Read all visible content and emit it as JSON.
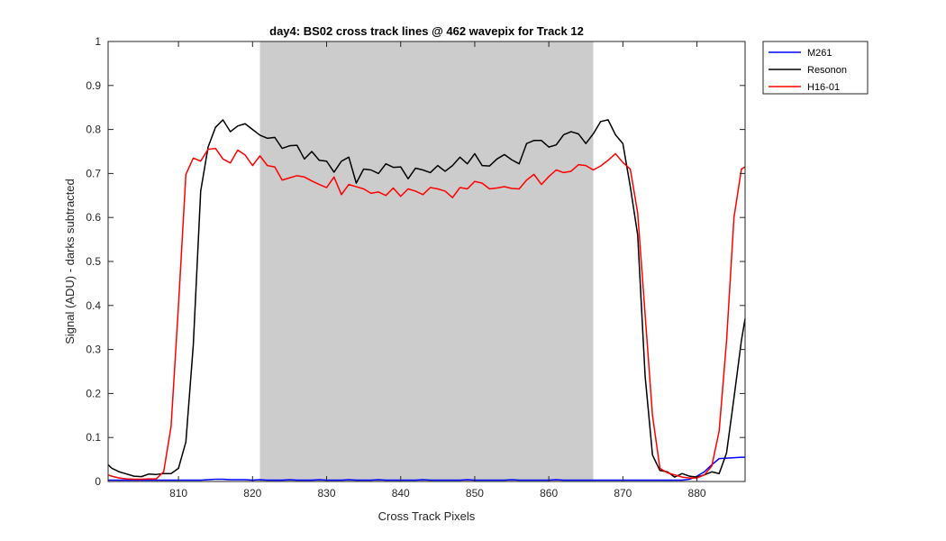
{
  "chart_data": {
    "type": "line",
    "title": "day4: BS02  cross track lines @ 462 wavepix for Track 12",
    "xlabel": "Cross Track Pixels",
    "ylabel": "Signal (ADU) - darks subtracted",
    "xlim": [
      800.5,
      886.5
    ],
    "ylim": [
      0,
      1
    ],
    "xticks": [
      810,
      820,
      830,
      840,
      850,
      860,
      870,
      880
    ],
    "xtick_labels": [
      "810",
      "820",
      "830",
      "840",
      "850",
      "860",
      "870",
      "880"
    ],
    "yticks": [
      0,
      0.1,
      0.2,
      0.3,
      0.4,
      0.5,
      0.6,
      0.7,
      0.8,
      0.9,
      1
    ],
    "ytick_labels": [
      "0",
      "0.1",
      "0.2",
      "0.3",
      "0.4",
      "0.5",
      "0.6",
      "0.7",
      "0.8",
      "0.9",
      "1"
    ],
    "grid": false,
    "legend_position": "outside-top-right",
    "shaded_region": {
      "x_start": 821,
      "x_end": 866,
      "color": "#cccccc"
    },
    "x": [
      800.5,
      801,
      802,
      803,
      804,
      805,
      806,
      807,
      808,
      809,
      810,
      811,
      812,
      813,
      814,
      815,
      816,
      817,
      818,
      819,
      820,
      821,
      822,
      823,
      824,
      825,
      826,
      827,
      828,
      829,
      830,
      831,
      832,
      833,
      834,
      835,
      836,
      837,
      838,
      839,
      840,
      841,
      842,
      843,
      844,
      845,
      846,
      847,
      848,
      849,
      850,
      851,
      852,
      853,
      854,
      855,
      856,
      857,
      858,
      859,
      860,
      861,
      862,
      863,
      864,
      865,
      866,
      867,
      868,
      869,
      870,
      871,
      872,
      873,
      874,
      875,
      876,
      877,
      878,
      879,
      880,
      881,
      882,
      883,
      884,
      885,
      886,
      886.5
    ],
    "series": [
      {
        "name": "M261",
        "color": "#0000ff",
        "values": [
          0.003,
          0.003,
          0.003,
          0.003,
          0.003,
          0.003,
          0.003,
          0.003,
          0.003,
          0.003,
          0.003,
          0.003,
          0.003,
          0.003,
          0.004,
          0.005,
          0.005,
          0.004,
          0.004,
          0.004,
          0.003,
          0.004,
          0.003,
          0.003,
          0.003,
          0.004,
          0.003,
          0.003,
          0.003,
          0.004,
          0.003,
          0.003,
          0.003,
          0.004,
          0.003,
          0.003,
          0.003,
          0.004,
          0.003,
          0.003,
          0.003,
          0.003,
          0.003,
          0.004,
          0.003,
          0.003,
          0.003,
          0.003,
          0.003,
          0.004,
          0.003,
          0.003,
          0.003,
          0.003,
          0.003,
          0.004,
          0.003,
          0.003,
          0.003,
          0.003,
          0.003,
          0.004,
          0.003,
          0.003,
          0.003,
          0.003,
          0.003,
          0.003,
          0.003,
          0.003,
          0.003,
          0.003,
          0.003,
          0.003,
          0.003,
          0.003,
          0.003,
          0.003,
          0.003,
          0.005,
          0.012,
          0.022,
          0.038,
          0.052,
          0.053,
          0.054,
          0.055,
          0.055
        ]
      },
      {
        "name": "Resonon",
        "color": "#000000",
        "values": [
          0.038,
          0.03,
          0.022,
          0.017,
          0.012,
          0.011,
          0.017,
          0.016,
          0.018,
          0.018,
          0.03,
          0.09,
          0.31,
          0.66,
          0.76,
          0.805,
          0.822,
          0.795,
          0.808,
          0.813,
          0.8,
          0.787,
          0.78,
          0.782,
          0.757,
          0.763,
          0.764,
          0.733,
          0.75,
          0.73,
          0.728,
          0.703,
          0.728,
          0.737,
          0.678,
          0.71,
          0.708,
          0.7,
          0.722,
          0.714,
          0.715,
          0.688,
          0.712,
          0.708,
          0.702,
          0.718,
          0.705,
          0.718,
          0.737,
          0.722,
          0.745,
          0.718,
          0.717,
          0.733,
          0.743,
          0.731,
          0.722,
          0.768,
          0.775,
          0.775,
          0.76,
          0.765,
          0.788,
          0.795,
          0.79,
          0.768,
          0.79,
          0.818,
          0.822,
          0.788,
          0.768,
          0.67,
          0.56,
          0.24,
          0.06,
          0.025,
          0.022,
          0.01,
          0.018,
          0.012,
          0.01,
          0.015,
          0.022,
          0.018,
          0.065,
          0.19,
          0.32,
          0.37
        ]
      },
      {
        "name": "H16-01",
        "color": "#ff0000",
        "values": [
          0.015,
          0.012,
          0.008,
          0.006,
          0.005,
          0.005,
          0.006,
          0.006,
          0.022,
          0.125,
          0.4,
          0.698,
          0.735,
          0.728,
          0.755,
          0.757,
          0.733,
          0.724,
          0.753,
          0.742,
          0.718,
          0.74,
          0.718,
          0.715,
          0.685,
          0.69,
          0.695,
          0.692,
          0.683,
          0.675,
          0.668,
          0.692,
          0.652,
          0.675,
          0.67,
          0.665,
          0.655,
          0.658,
          0.65,
          0.667,
          0.648,
          0.665,
          0.66,
          0.652,
          0.668,
          0.665,
          0.66,
          0.645,
          0.668,
          0.665,
          0.682,
          0.678,
          0.665,
          0.667,
          0.67,
          0.666,
          0.665,
          0.685,
          0.698,
          0.675,
          0.693,
          0.708,
          0.702,
          0.705,
          0.72,
          0.718,
          0.708,
          0.717,
          0.73,
          0.745,
          0.725,
          0.71,
          0.61,
          0.38,
          0.15,
          0.03,
          0.02,
          0.015,
          0.01,
          0.008,
          0.008,
          0.015,
          0.035,
          0.115,
          0.32,
          0.6,
          0.71,
          0.715
        ]
      }
    ]
  },
  "legend": {
    "entries": [
      "M261",
      "Resonon",
      "H16-01"
    ]
  }
}
